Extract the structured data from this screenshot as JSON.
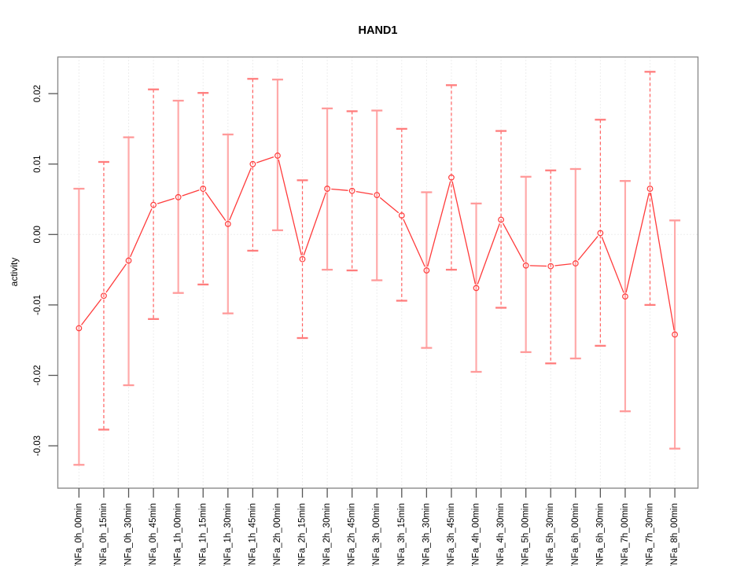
{
  "chart_data": {
    "type": "line",
    "title": "HAND1",
    "xlabel": "",
    "ylabel": "activity",
    "legend": "none",
    "grid": "dotted vertical line per category plus dotted horizontal line at y=0",
    "point_style": "open red circles with error bars; line segments broken around points; error bars alternate solid-salmon and dashed-red",
    "categories": [
      "TNFa_0h_00min",
      "TNFa_0h_15min",
      "TNFa_0h_30min",
      "TNFa_0h_45min",
      "TNFa_1h_00min",
      "TNFa_1h_15min",
      "TNFa_1h_30min",
      "TNFa_1h_45min",
      "TNFa_2h_00min",
      "TNFa_2h_15min",
      "TNFa_2h_30min",
      "TNFa_2h_45min",
      "TNFa_3h_00min",
      "TNFa_3h_15min",
      "TNFa_3h_30min",
      "TNFa_3h_45min",
      "TNFa_4h_00min",
      "TNFa_4h_30min",
      "TNFa_5h_00min",
      "TNFa_5h_30min",
      "TNFa_6h_00min",
      "TNFa_6h_30min",
      "TNFa_7h_00min",
      "TNFa_7h_30min",
      "TNFa_8h_00min"
    ],
    "series": [
      {
        "name": "activity",
        "values": [
          -0.0133,
          -0.0087,
          -0.0037,
          0.0042,
          0.0053,
          0.0065,
          0.0015,
          0.01,
          0.0112,
          -0.0035,
          0.0065,
          0.0062,
          0.0056,
          0.0027,
          -0.0051,
          0.0081,
          -0.0076,
          0.0021,
          -0.0044,
          -0.0045,
          -0.0041,
          0.0002,
          -0.0088,
          0.0065,
          -0.0142
        ]
      },
      {
        "name": "upper_error",
        "values": [
          0.0065,
          0.0103,
          0.0138,
          0.0206,
          0.019,
          0.0201,
          0.0142,
          0.0221,
          0.022,
          0.0077,
          0.0179,
          0.0175,
          0.0176,
          0.015,
          0.006,
          0.0212,
          0.0044,
          0.0147,
          0.0082,
          0.0091,
          0.0093,
          0.0163,
          0.0076,
          0.0231,
          0.002
        ]
      },
      {
        "name": "lower_error",
        "values": [
          -0.0327,
          -0.0277,
          -0.0214,
          -0.012,
          -0.0083,
          -0.0071,
          -0.0112,
          -0.0023,
          0.0006,
          -0.0147,
          -0.005,
          -0.0051,
          -0.0065,
          -0.0094,
          -0.0161,
          -0.005,
          -0.0195,
          -0.0104,
          -0.0167,
          -0.0183,
          -0.0176,
          -0.0158,
          -0.0251,
          -0.01,
          -0.0304
        ]
      }
    ],
    "yticks": [
      "0.02",
      "0.01",
      "0.00",
      "-0.01",
      "-0.02",
      "-0.03"
    ],
    "ytick_values": [
      0.02,
      0.01,
      0.0,
      -0.01,
      -0.02,
      -0.03
    ],
    "ylim": [
      -0.036,
      0.0252
    ],
    "colors": {
      "series_red": "#ff3b3b",
      "errorbar_solid": "#ffaaaa",
      "errorbar_dashed": "#ff6060",
      "errorbar_cap_solid": "#ff9a9a",
      "errorbar_cap_dashed": "#ff7d7d",
      "gridline": "#dcdcdc",
      "box": "#8c8c8c",
      "tick": "#555555",
      "text": "#000000"
    }
  }
}
